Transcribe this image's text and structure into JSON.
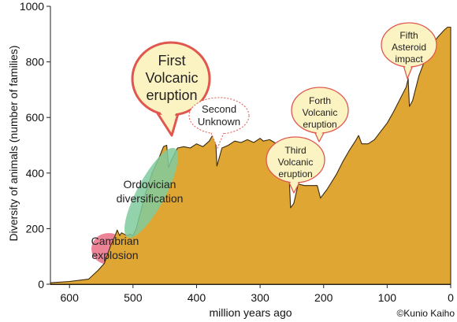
{
  "chart_data": {
    "type": "area",
    "xlabel": "million years ago",
    "ylabel": "Diversity of animals (number of families)",
    "xlim": [
      630,
      0
    ],
    "ylim": [
      0,
      1000
    ],
    "xticks": [
      600,
      500,
      400,
      300,
      200,
      100,
      0
    ],
    "yticks": [
      0,
      200,
      400,
      600,
      800,
      1000
    ],
    "grid": false,
    "fill_color": "#E0A633",
    "series": [
      {
        "values": [
          [
            630,
            5
          ],
          [
            600,
            10
          ],
          [
            570,
            18
          ],
          [
            555,
            50
          ],
          [
            545,
            75
          ],
          [
            535,
            140
          ],
          [
            528,
            175
          ],
          [
            525,
            195
          ],
          [
            521,
            175
          ],
          [
            518,
            185
          ],
          [
            510,
            175
          ],
          [
            505,
            180
          ],
          [
            500,
            175
          ],
          [
            495,
            200
          ],
          [
            488,
            260
          ],
          [
            480,
            330
          ],
          [
            470,
            400
          ],
          [
            460,
            450
          ],
          [
            452,
            495
          ],
          [
            447,
            500
          ],
          [
            444,
            420
          ],
          [
            440,
            445
          ],
          [
            430,
            490
          ],
          [
            420,
            495
          ],
          [
            410,
            490
          ],
          [
            400,
            505
          ],
          [
            390,
            495
          ],
          [
            380,
            515
          ],
          [
            375,
            535
          ],
          [
            370,
            520
          ],
          [
            368,
            425
          ],
          [
            360,
            490
          ],
          [
            350,
            500
          ],
          [
            340,
            515
          ],
          [
            330,
            510
          ],
          [
            320,
            520
          ],
          [
            310,
            510
          ],
          [
            300,
            525
          ],
          [
            295,
            515
          ],
          [
            285,
            520
          ],
          [
            270,
            500
          ],
          [
            260,
            485
          ],
          [
            255,
            420
          ],
          [
            252,
            275
          ],
          [
            247,
            290
          ],
          [
            240,
            360
          ],
          [
            230,
            355
          ],
          [
            210,
            355
          ],
          [
            205,
            310
          ],
          [
            195,
            340
          ],
          [
            180,
            395
          ],
          [
            170,
            440
          ],
          [
            160,
            480
          ],
          [
            150,
            515
          ],
          [
            145,
            535
          ],
          [
            140,
            505
          ],
          [
            130,
            505
          ],
          [
            120,
            520
          ],
          [
            110,
            550
          ],
          [
            100,
            580
          ],
          [
            90,
            620
          ],
          [
            80,
            665
          ],
          [
            70,
            710
          ],
          [
            67,
            740
          ],
          [
            65,
            640
          ],
          [
            60,
            660
          ],
          [
            50,
            750
          ],
          [
            40,
            810
          ],
          [
            30,
            860
          ],
          [
            20,
            890
          ],
          [
            10,
            915
          ],
          [
            5,
            925
          ],
          [
            0,
            925
          ]
        ]
      }
    ],
    "annotations": [
      {
        "name": "cambrian-explosion",
        "lines": [
          "Cambrian",
          "explosion"
        ]
      },
      {
        "name": "ordovician-diversification",
        "lines": [
          "Ordovician",
          "diversification"
        ]
      },
      {
        "name": "first-volcanic-eruption",
        "lines": [
          "First",
          "Volcanic",
          "eruption"
        ]
      },
      {
        "name": "second-unknown",
        "lines": [
          "Second",
          "Unknown"
        ]
      },
      {
        "name": "third-volcanic-eruption",
        "lines": [
          "Third",
          "Volcanic",
          "eruption"
        ]
      },
      {
        "name": "forth-volcanic-eruption",
        "lines": [
          "Forth",
          "Volcanic",
          "eruption"
        ]
      },
      {
        "name": "fifth-asteroid-impact",
        "lines": [
          "Fifth",
          "Asteroid",
          "impact"
        ]
      }
    ],
    "credit": "©Kunio Kaiho",
    "colors": {
      "callout_fill": "#FBF3C2",
      "callout_border": "#E0574F",
      "ordovician_fill": "#7FCB9E",
      "cambrian_fill": "#E8607A"
    }
  }
}
